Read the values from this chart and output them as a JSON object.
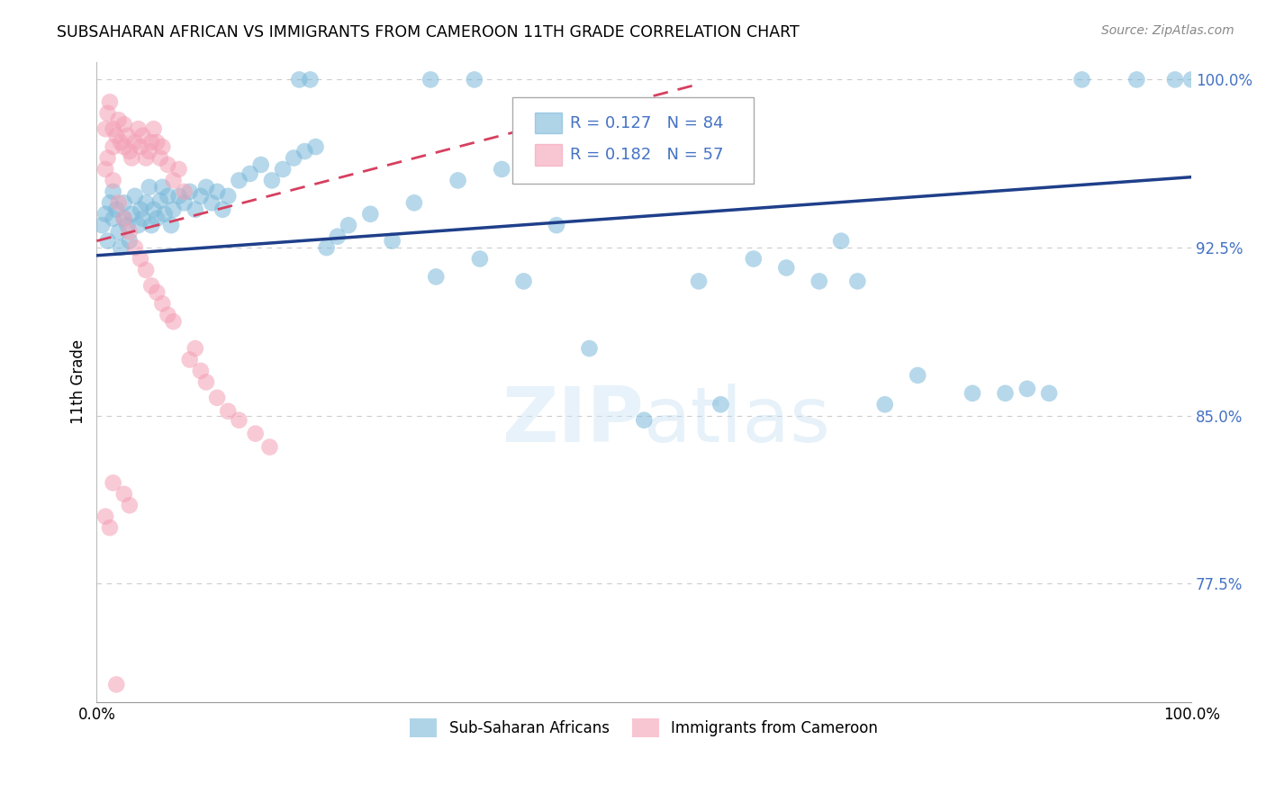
{
  "title": "SUBSAHARAN AFRICAN VS IMMIGRANTS FROM CAMEROON 11TH GRADE CORRELATION CHART",
  "source": "Source: ZipAtlas.com",
  "ylabel": "11th Grade",
  "xlim": [
    0.0,
    1.0
  ],
  "ylim_low": 0.722,
  "ylim_high": 1.008,
  "yticks": [
    0.775,
    0.85,
    0.925,
    1.0
  ],
  "ytick_labels": [
    "77.5%",
    "85.0%",
    "92.5%",
    "100.0%"
  ],
  "xtick_vals": [
    0.0,
    0.25,
    0.5,
    0.75,
    1.0
  ],
  "xtick_labels": [
    "0.0%",
    "",
    "",
    "",
    "100.0%"
  ],
  "legend1_label": "Sub-Saharan Africans",
  "legend2_label": "Immigrants from Cameroon",
  "blue_color": "#7ab8d9",
  "pink_color": "#f4a0b5",
  "line_blue_color": "#1f3f8a",
  "line_pink_color": "#d64060",
  "r_blue": "0.127",
  "n_blue": "84",
  "r_pink": "0.182",
  "n_pink": "57",
  "blue_line_x": [
    0.0,
    1.0
  ],
  "blue_line_y": [
    0.9215,
    0.9565
  ],
  "pink_line_x": [
    0.0,
    0.55
  ],
  "pink_line_y": [
    0.928,
    0.998
  ],
  "blue_x": [
    0.005,
    0.008,
    0.01,
    0.012,
    0.015,
    0.015,
    0.018,
    0.02,
    0.022,
    0.025,
    0.025,
    0.028,
    0.03,
    0.032,
    0.035,
    0.038,
    0.04,
    0.042,
    0.045,
    0.048,
    0.05,
    0.052,
    0.055,
    0.058,
    0.06,
    0.062,
    0.065,
    0.068,
    0.07,
    0.075,
    0.08,
    0.085,
    0.09,
    0.095,
    0.1,
    0.105,
    0.11,
    0.115,
    0.12,
    0.13,
    0.14,
    0.15,
    0.16,
    0.17,
    0.18,
    0.19,
    0.2,
    0.21,
    0.22,
    0.23,
    0.25,
    0.27,
    0.29,
    0.31,
    0.33,
    0.35,
    0.37,
    0.39,
    0.42,
    0.45,
    0.48,
    0.5,
    0.53,
    0.57,
    0.6,
    0.63,
    0.68,
    0.72,
    0.75,
    0.8,
    0.185,
    0.195,
    0.305,
    0.345,
    0.55,
    0.66,
    0.695,
    0.83,
    0.85,
    0.87,
    0.9,
    0.95,
    0.985,
    1.0
  ],
  "blue_y": [
    0.935,
    0.94,
    0.928,
    0.945,
    0.938,
    0.95,
    0.942,
    0.932,
    0.925,
    0.938,
    0.945,
    0.935,
    0.928,
    0.94,
    0.948,
    0.935,
    0.942,
    0.938,
    0.945,
    0.952,
    0.935,
    0.942,
    0.938,
    0.946,
    0.952,
    0.94,
    0.948,
    0.935,
    0.942,
    0.948,
    0.945,
    0.95,
    0.942,
    0.948,
    0.952,
    0.945,
    0.95,
    0.942,
    0.948,
    0.955,
    0.958,
    0.962,
    0.955,
    0.96,
    0.965,
    0.968,
    0.97,
    0.925,
    0.93,
    0.935,
    0.94,
    0.928,
    0.945,
    0.912,
    0.955,
    0.92,
    0.96,
    0.91,
    0.935,
    0.88,
    0.962,
    0.848,
    0.968,
    0.855,
    0.92,
    0.916,
    0.928,
    0.855,
    0.868,
    0.86,
    1.0,
    1.0,
    1.0,
    1.0,
    0.91,
    0.91,
    0.91,
    0.86,
    0.862,
    0.86,
    1.0,
    1.0,
    1.0,
    1.0
  ],
  "pink_x": [
    0.008,
    0.01,
    0.012,
    0.015,
    0.015,
    0.018,
    0.02,
    0.022,
    0.025,
    0.025,
    0.028,
    0.03,
    0.032,
    0.035,
    0.038,
    0.04,
    0.042,
    0.045,
    0.048,
    0.05,
    0.052,
    0.055,
    0.058,
    0.06,
    0.065,
    0.07,
    0.075,
    0.08,
    0.085,
    0.09,
    0.095,
    0.1,
    0.11,
    0.12,
    0.13,
    0.145,
    0.158,
    0.008,
    0.01,
    0.015,
    0.02,
    0.025,
    0.03,
    0.035,
    0.04,
    0.045,
    0.05,
    0.055,
    0.06,
    0.065,
    0.07,
    0.015,
    0.025,
    0.03,
    0.008,
    0.012,
    0.018
  ],
  "pink_y": [
    0.978,
    0.985,
    0.99,
    0.978,
    0.97,
    0.975,
    0.982,
    0.972,
    0.98,
    0.97,
    0.975,
    0.968,
    0.965,
    0.972,
    0.978,
    0.97,
    0.975,
    0.965,
    0.968,
    0.972,
    0.978,
    0.972,
    0.965,
    0.97,
    0.962,
    0.955,
    0.96,
    0.95,
    0.875,
    0.88,
    0.87,
    0.865,
    0.858,
    0.852,
    0.848,
    0.842,
    0.836,
    0.96,
    0.965,
    0.955,
    0.945,
    0.938,
    0.932,
    0.925,
    0.92,
    0.915,
    0.908,
    0.905,
    0.9,
    0.895,
    0.892,
    0.82,
    0.815,
    0.81,
    0.805,
    0.8,
    0.73
  ]
}
